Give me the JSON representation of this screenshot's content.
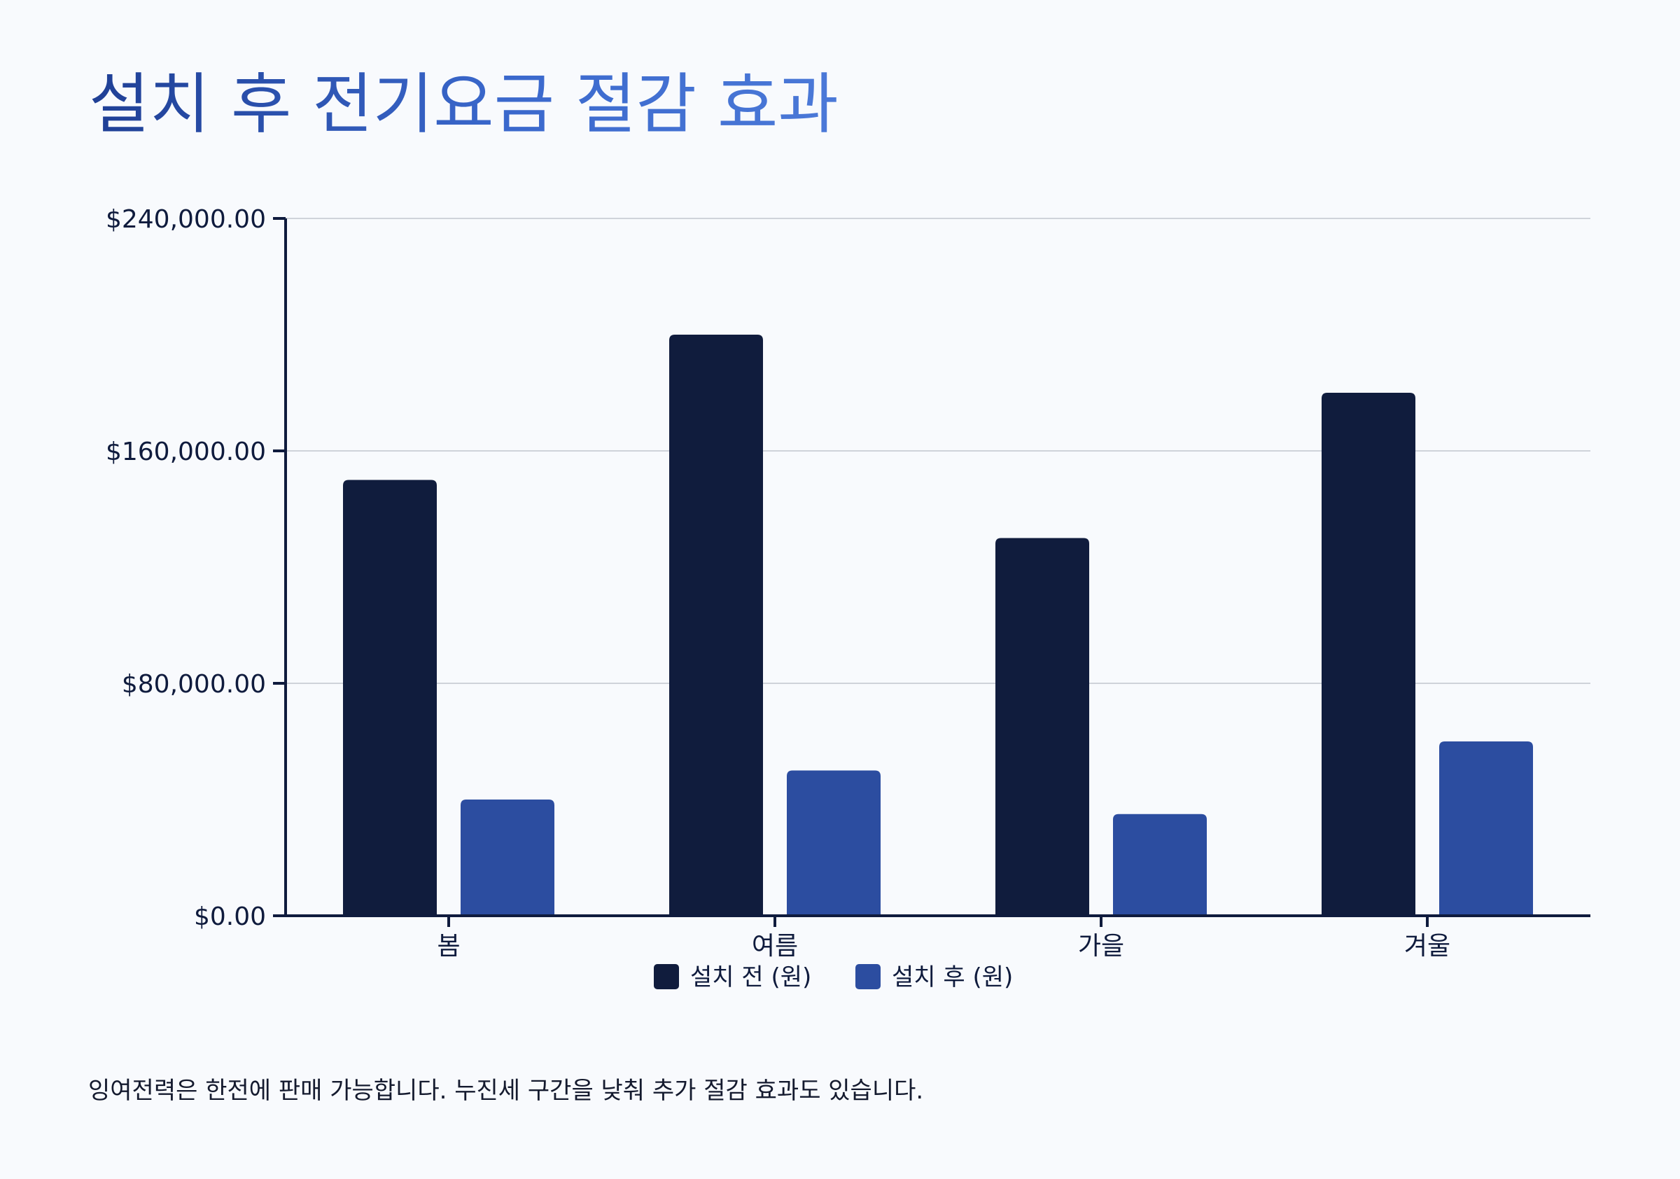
{
  "title": "설치 후 전기요금 절감 효과",
  "note": "잉여전력은 한전에 판매 가능합니다. 누진세 구간을 낮춰 추가 절감 효과도 있습니다.",
  "chart_data": {
    "type": "bar",
    "categories": [
      "봄",
      "여름",
      "가을",
      "겨울"
    ],
    "series": [
      {
        "name": "설치 전 (원)",
        "values": [
          150000,
          200000,
          130000,
          180000
        ],
        "color": "#101c3d"
      },
      {
        "name": "설치 후 (원)",
        "values": [
          40000,
          50000,
          35000,
          60000
        ],
        "color": "#2c4da0"
      }
    ],
    "ylim": [
      0,
      240000
    ],
    "yticks": [
      0,
      80000,
      160000,
      240000
    ],
    "ytick_labels": [
      "$0.00",
      "$80,000.00",
      "$160,000.00",
      "$240,000.00"
    ],
    "grid": true,
    "legend_position": "bottom-center"
  }
}
